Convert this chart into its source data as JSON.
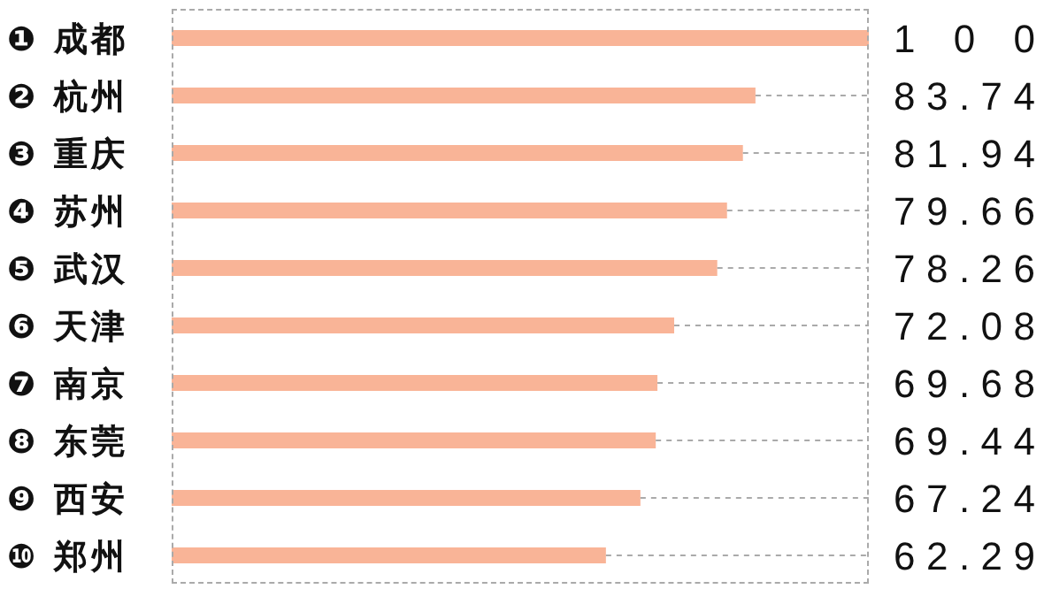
{
  "chart_data": {
    "type": "bar",
    "orientation": "horizontal",
    "categories": [
      "❶ 成都",
      "❷ 杭州",
      "❸ 重庆",
      "❹ 苏州",
      "❺ 武汉",
      "❻ 天津",
      "❼ 南京",
      "❽ 东莞",
      "❾ 西安",
      "❿ 郑州"
    ],
    "values": [
      100,
      83.74,
      81.94,
      79.66,
      78.26,
      72.08,
      69.68,
      69.44,
      67.24,
      62.29
    ],
    "color": "#f9b497",
    "xlim": [
      0,
      100
    ],
    "tick_labels": "y",
    "data_labels": true
  }
}
